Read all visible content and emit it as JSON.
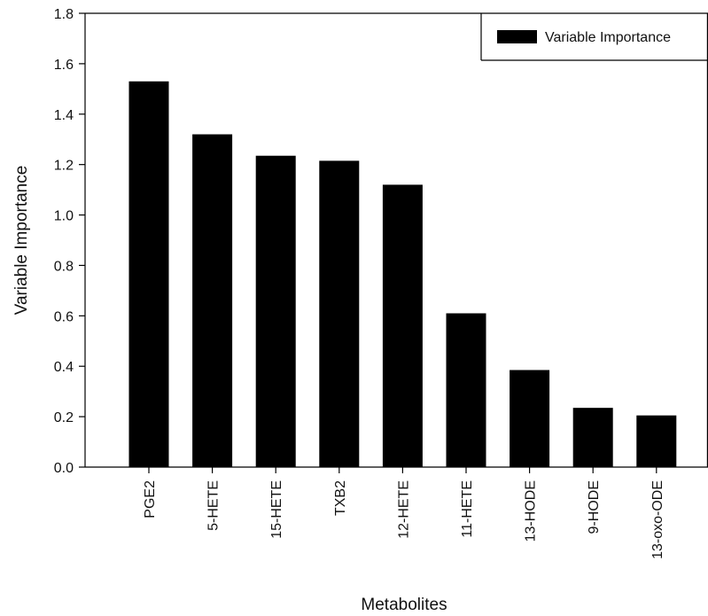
{
  "chart_data": {
    "type": "bar",
    "categories": [
      "PGE2",
      "5-HETE",
      "15-HETE",
      "TXB2",
      "12-HETE",
      "11-HETE",
      "13-HODE",
      "9-HODE",
      "13-oxo-ODE"
    ],
    "series": [
      {
        "name": "Variable Importance",
        "color": "#000000",
        "values": [
          1.53,
          1.32,
          1.235,
          1.215,
          1.12,
          0.61,
          0.385,
          0.235,
          0.205
        ]
      }
    ],
    "xlabel": "Metabolites",
    "ylabel": "Variable Importance",
    "ylim": [
      0,
      1.8
    ],
    "yticks": [
      "0.0",
      "0.2",
      "0.4",
      "0.6",
      "0.8",
      "1.0",
      "1.2",
      "1.4",
      "1.6",
      "1.8"
    ],
    "grid": false,
    "legend": {
      "position": "top-right",
      "labels": [
        "Variable Importance"
      ]
    }
  }
}
